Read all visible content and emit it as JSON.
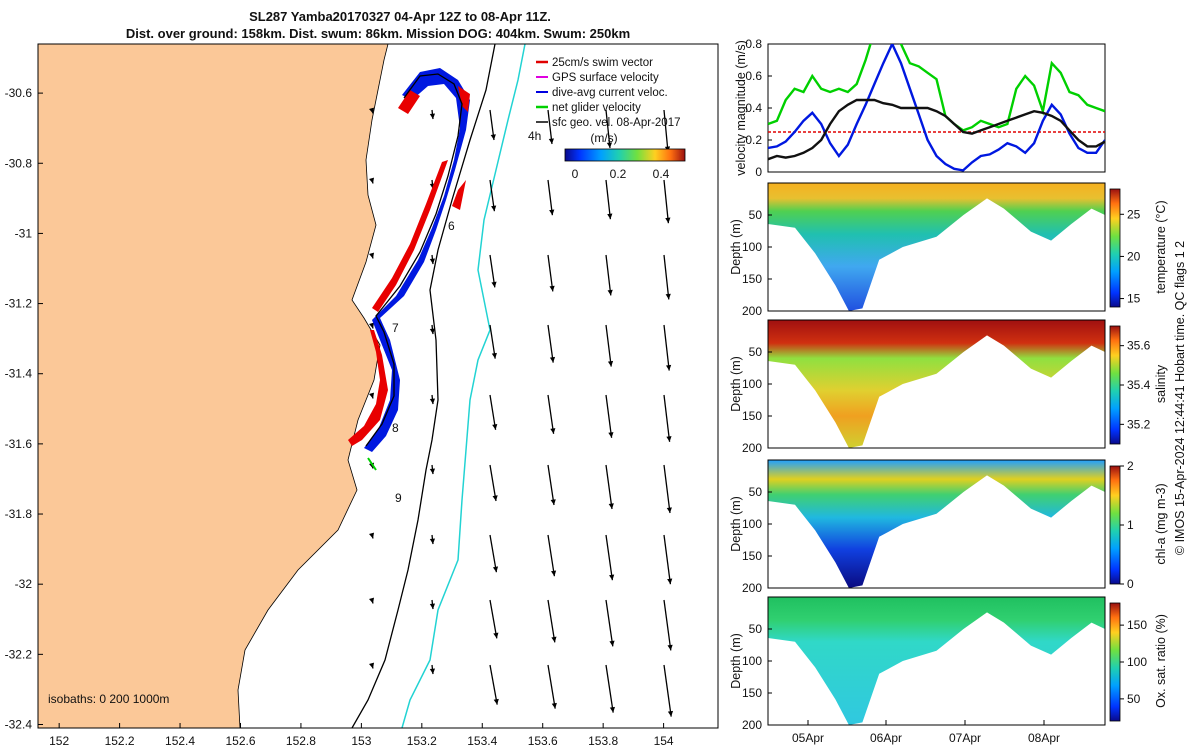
{
  "title": {
    "line1": "SL287 Yamba20170327 04-Apr 12Z to 08-Apr 11Z.",
    "line2": "Dist. over ground: 158km. Dist. swum: 86km. Mission DOG: 404km. Swum: 250km"
  },
  "credit": "© IMOS 15-Apr-2024 12:44:41 Hobart time. QC flags 1  2",
  "map": {
    "isobaths_label": "isobaths: 0   200  1000m",
    "colorbar_unit": "(m/s)",
    "colorbar_ticks": [
      "0",
      "0.2",
      "0.4"
    ],
    "legend": [
      {
        "text": "25cm/s swim vector",
        "color": "#e00000"
      },
      {
        "text": "GPS surface velocity",
        "color": "#e000e0"
      },
      {
        "text": "dive-avg current veloc.",
        "color": "#0000e0"
      },
      {
        "text": "net glider velocity",
        "color": "#00d000"
      },
      {
        "text": "sfc geo. vel. 08-Apr-2017",
        "color": "#000000"
      }
    ],
    "day_markers": [
      "4h",
      "6",
      "7",
      "8",
      "9"
    ],
    "colors": {
      "land": "#fbc898",
      "coast": "#000000",
      "iso200": "#000000",
      "iso1000": "#22d3d3",
      "track_red": "#e80000",
      "track_blue": "#0018e0"
    }
  },
  "chart_data": [
    {
      "type": "map",
      "x_ticks": [
        "152",
        "152.2",
        "152.4",
        "152.6",
        "152.8",
        "153",
        "153.2",
        "153.4",
        "153.6",
        "153.8",
        "154"
      ],
      "y_ticks": [
        "-30.6",
        "-30.8",
        "-31",
        "-31.2",
        "-31.4",
        "-31.6",
        "-31.8",
        "-32",
        "-32.2",
        "-32.4"
      ],
      "xlim": [
        151.93,
        154.18
      ],
      "ylim": [
        -32.41,
        -30.46
      ]
    },
    {
      "type": "line",
      "ylabel": "velocity magnitude (m/s)",
      "y_ticks": [
        "0",
        "0.2",
        "0.4",
        "0.6",
        "0.8"
      ],
      "ylim": [
        0,
        0.8
      ],
      "threshold": 0.25,
      "series": [
        {
          "color": "#0018e0",
          "values": [
            0.15,
            0.16,
            0.19,
            0.25,
            0.32,
            0.37,
            0.3,
            0.18,
            0.1,
            0.17,
            0.3,
            0.42,
            0.55,
            0.68,
            0.8,
            0.68,
            0.52,
            0.36,
            0.2,
            0.1,
            0.05,
            0.02,
            0.01,
            0.06,
            0.1,
            0.11,
            0.14,
            0.18,
            0.16,
            0.12,
            0.18,
            0.32,
            0.42,
            0.36,
            0.24,
            0.15,
            0.12,
            0.12,
            0.2
          ]
        },
        {
          "color": "#00d000",
          "values": [
            0.3,
            0.32,
            0.45,
            0.52,
            0.5,
            0.6,
            0.52,
            0.5,
            0.52,
            0.5,
            0.55,
            0.7,
            0.88,
            0.86,
            0.92,
            0.8,
            0.68,
            0.66,
            0.62,
            0.58,
            0.35,
            0.3,
            0.26,
            0.28,
            0.32,
            0.3,
            0.28,
            0.3,
            0.52,
            0.6,
            0.54,
            0.38,
            0.68,
            0.62,
            0.5,
            0.48,
            0.42,
            0.4,
            0.38
          ]
        },
        {
          "color": "#111111",
          "values": [
            0.08,
            0.1,
            0.09,
            0.1,
            0.12,
            0.15,
            0.2,
            0.3,
            0.38,
            0.42,
            0.45,
            0.45,
            0.45,
            0.43,
            0.42,
            0.4,
            0.4,
            0.4,
            0.4,
            0.38,
            0.35,
            0.3,
            0.25,
            0.24,
            0.26,
            0.28,
            0.3,
            0.32,
            0.34,
            0.36,
            0.38,
            0.37,
            0.35,
            0.32,
            0.26,
            0.2,
            0.16,
            0.16,
            0.19
          ]
        }
      ]
    },
    {
      "type": "heatmap",
      "ylabel": "Depth (m)",
      "y_ticks": [
        "50",
        "100",
        "150",
        "200"
      ],
      "ylim": [
        200,
        0
      ],
      "colorbar_label": "temperature (°C)",
      "colorbar_ticks": [
        "15",
        "20",
        "25"
      ],
      "clim": [
        14,
        28
      ]
    },
    {
      "type": "heatmap",
      "ylabel": "Depth (m)",
      "y_ticks": [
        "50",
        "100",
        "150",
        "200"
      ],
      "ylim": [
        200,
        0
      ],
      "colorbar_label": "salinity",
      "colorbar_ticks": [
        "35.2",
        "35.4",
        "35.6"
      ],
      "clim": [
        35.1,
        35.7
      ]
    },
    {
      "type": "heatmap",
      "ylabel": "Depth (m)",
      "y_ticks": [
        "50",
        "100",
        "150",
        "200"
      ],
      "ylim": [
        200,
        0
      ],
      "colorbar_label": "chl-a (mg m-3)",
      "colorbar_ticks": [
        "0",
        "1",
        "2"
      ],
      "clim": [
        0,
        2
      ]
    },
    {
      "type": "heatmap",
      "ylabel": "Depth (m)",
      "y_ticks": [
        "50",
        "100",
        "150",
        "200"
      ],
      "ylim": [
        200,
        0
      ],
      "colorbar_label": "Ox. sat. ratio (%)",
      "colorbar_ticks": [
        "50",
        "100",
        "150"
      ],
      "clim": [
        20,
        180
      ],
      "x_ticks": [
        "05Apr",
        "06Apr",
        "07Apr",
        "08Apr"
      ]
    }
  ]
}
